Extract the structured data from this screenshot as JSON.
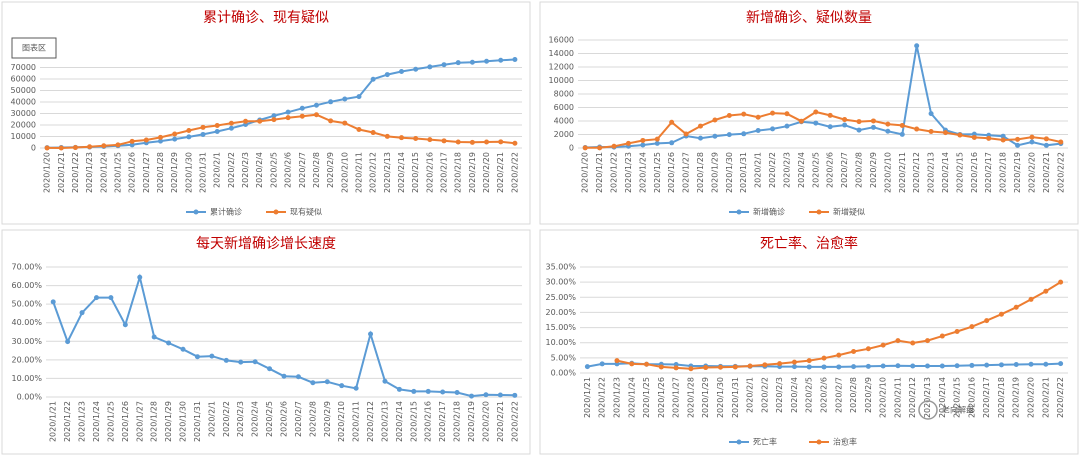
{
  "chart_data": [
    {
      "type": "line",
      "title": "累计确诊、现有疑似",
      "tooltip": "图表区",
      "categories": [
        "2020/1/20",
        "2020/1/21",
        "2020/1/22",
        "2020/1/23",
        "2020/1/24",
        "2020/1/25",
        "2020/1/26",
        "2020/1/27",
        "2020/1/28",
        "2020/1/29",
        "2020/1/30",
        "2020/1/31",
        "2020/2/1",
        "2020/2/2",
        "2020/2/3",
        "2020/2/4",
        "2020/2/5",
        "2020/2/6",
        "2020/2/7",
        "2020/2/8",
        "2020/2/9",
        "2020/2/10",
        "2020/2/11",
        "2020/2/12",
        "2020/2/13",
        "2020/2/14",
        "2020/2/15",
        "2020/2/16",
        "2020/2/17",
        "2020/2/18",
        "2020/2/19",
        "2020/2/20",
        "2020/2/21",
        "2020/2/22"
      ],
      "series": [
        {
          "name": "累计确诊",
          "color": "#5b9bd5",
          "values": [
            291,
            440,
            571,
            830,
            1287,
            1975,
            2744,
            4515,
            5974,
            7711,
            9692,
            11791,
            14380,
            17205,
            20438,
            24324,
            28018,
            31161,
            34546,
            37198,
            40171,
            42638,
            44653,
            59804,
            63851,
            66492,
            68500,
            70548,
            72436,
            74185,
            74576,
            75465,
            76288,
            76936
          ]
        },
        {
          "name": "现有疑似",
          "color": "#ed7d31",
          "values": [
            54,
            37,
            393,
            1072,
            1965,
            2684,
            5794,
            6973,
            9239,
            12167,
            15238,
            17988,
            19544,
            21558,
            23214,
            23260,
            24702,
            26359,
            27657,
            28942,
            23589,
            21675,
            16067,
            13435,
            10109,
            8969,
            8228,
            7264,
            6242,
            5248,
            4922,
            5206,
            5365,
            4148
          ]
        }
      ],
      "ylim": [
        0,
        80000
      ],
      "yticks": [
        0,
        10000,
        20000,
        30000,
        40000,
        50000,
        60000,
        70000
      ],
      "grid": true,
      "legend": "bottom"
    },
    {
      "type": "line",
      "title": "新增确诊、疑似数量",
      "categories": [
        "2020/1/20",
        "2020/1/21",
        "2020/1/22",
        "2020/1/23",
        "2020/1/24",
        "2020/1/25",
        "2020/1/26",
        "2020/1/27",
        "2020/1/28",
        "2020/1/29",
        "2020/1/30",
        "2020/1/31",
        "2020/2/1",
        "2020/2/2",
        "2020/2/3",
        "2020/2/4",
        "2020/2/5",
        "2020/2/6",
        "2020/2/7",
        "2020/2/8",
        "2020/2/9",
        "2020/2/10",
        "2020/2/11",
        "2020/2/12",
        "2020/2/13",
        "2020/2/14",
        "2020/2/15",
        "2020/2/16",
        "2020/2/17",
        "2020/2/18",
        "2020/2/19",
        "2020/2/20",
        "2020/2/21",
        "2020/2/22"
      ],
      "series": [
        {
          "name": "新增确诊",
          "color": "#5b9bd5",
          "values": [
            77,
            149,
            131,
            259,
            444,
            688,
            769,
            1771,
            1459,
            1737,
            1982,
            2102,
            2590,
            2829,
            3235,
            3887,
            3694,
            3143,
            3399,
            2656,
            3062,
            2478,
            2015,
            15152,
            5090,
            2641,
            2009,
            2048,
            1886,
            1749,
            394,
            889,
            397,
            648
          ]
        },
        {
          "name": "新增疑似",
          "color": "#ed7d31",
          "values": [
            27,
            26,
            257,
            680,
            1118,
            1309,
            3806,
            2077,
            3248,
            4148,
            4812,
            5019,
            4562,
            5173,
            5072,
            3971,
            5328,
            4833,
            4214,
            3916,
            4008,
            3536,
            3342,
            2807,
            2450,
            2277,
            1918,
            1563,
            1432,
            1185,
            1277,
            1614,
            1361,
            882
          ]
        }
      ],
      "ylim": [
        0,
        16000
      ],
      "yticks": [
        0,
        2000,
        4000,
        6000,
        8000,
        10000,
        12000,
        14000,
        16000
      ],
      "grid": true,
      "legend": "bottom"
    },
    {
      "type": "line",
      "title": "每天新增确诊增长速度",
      "categories": [
        "2020/1/21",
        "2020/1/22",
        "2020/1/23",
        "2020/1/24",
        "2020/1/25",
        "2020/1/26",
        "2020/1/27",
        "2020/1/28",
        "2020/1/29",
        "2020/1/30",
        "2020/1/31",
        "2020/2/1",
        "2020/2/2",
        "2020/2/3",
        "2020/2/4",
        "2020/2/5",
        "2020/2/6",
        "2020/2/7",
        "2020/2/8",
        "2020/2/9",
        "2020/2/10",
        "2020/2/11",
        "2020/2/12",
        "2020/2/13",
        "2020/2/14",
        "2020/2/15",
        "2020/2/16",
        "2020/2/17",
        "2020/2/18",
        "2020/2/19",
        "2020/2/20",
        "2020/2/21",
        "2020/2/22"
      ],
      "series": [
        {
          "color": "#5b9bd5",
          "values": [
            51.2,
            29.8,
            45.4,
            53.5,
            53.5,
            38.9,
            64.5,
            32.3,
            29.1,
            25.7,
            21.7,
            22.0,
            19.7,
            18.8,
            19.0,
            15.2,
            11.2,
            10.9,
            7.7,
            8.2,
            6.1,
            4.7,
            33.9,
            8.5,
            4.1,
            3.0,
            3.0,
            2.7,
            2.4,
            0.5,
            1.2,
            1.1,
            0.9
          ]
        }
      ],
      "ylim": [
        0,
        70
      ],
      "yticks": [
        {
          "value": 0,
          "label": "0.00%"
        },
        {
          "value": 10,
          "label": "10.00%"
        },
        {
          "value": 20,
          "label": "20.00%"
        },
        {
          "value": 30,
          "label": "30.00%"
        },
        {
          "value": 40,
          "label": "40.00%"
        },
        {
          "value": 50,
          "label": "50.00%"
        },
        {
          "value": 60,
          "label": "60.00%"
        },
        {
          "value": 70,
          "label": "70.00%"
        }
      ],
      "grid": true
    },
    {
      "type": "line",
      "title": "死亡率、治愈率",
      "watermark": "老向解盘",
      "categories": [
        "2020/1/21",
        "2020/1/22",
        "2020/1/23",
        "2020/1/24",
        "2020/1/25",
        "2020/1/26",
        "2020/1/27",
        "2020/1/28",
        "2020/1/29",
        "2020/1/30",
        "2020/1/31",
        "2020/2/1",
        "2020/2/2",
        "2020/2/3",
        "2020/2/4",
        "2020/2/5",
        "2020/2/6",
        "2020/2/7",
        "2020/2/8",
        "2020/2/9",
        "2020/2/10",
        "2020/2/11",
        "2020/2/12",
        "2020/2/13",
        "2020/2/14",
        "2020/2/15",
        "2020/2/16",
        "2020/2/17",
        "2020/2/18",
        "2020/2/19",
        "2020/2/20",
        "2020/2/21",
        "2020/2/22"
      ],
      "series": [
        {
          "name": "死亡率",
          "color": "#5b9bd5",
          "values": [
            2.1,
            3.0,
            3.0,
            3.2,
            2.9,
            2.9,
            2.8,
            2.3,
            2.3,
            2.2,
            2.2,
            2.2,
            2.2,
            2.1,
            2.1,
            2.0,
            2.0,
            2.0,
            2.1,
            2.2,
            2.3,
            2.4,
            2.3,
            2.3,
            2.3,
            2.4,
            2.5,
            2.6,
            2.7,
            2.8,
            2.9,
            2.9,
            3.1
          ]
        },
        {
          "name": "治愈率",
          "color": "#ed7d31",
          "values": [
            null,
            null,
            4.1,
            3.0,
            2.9,
            2.0,
            1.7,
            1.4,
            1.8,
            1.9,
            2.0,
            2.3,
            2.7,
            3.1,
            3.6,
            4.1,
            4.9,
            5.9,
            7.1,
            8.0,
            9.2,
            10.7,
            9.9,
            10.7,
            12.2,
            13.7,
            15.3,
            17.3,
            19.4,
            21.7,
            24.3,
            27.0,
            30.0
          ]
        }
      ],
      "ylim": [
        0,
        35
      ],
      "yticks": [
        {
          "value": 0,
          "label": "0.00%"
        },
        {
          "value": 5,
          "label": "5.00%"
        },
        {
          "value": 10,
          "label": "10.00%"
        },
        {
          "value": 15,
          "label": "15.00%"
        },
        {
          "value": 20,
          "label": "20.00%"
        },
        {
          "value": 25,
          "label": "25.00%"
        },
        {
          "value": 30,
          "label": "30.00%"
        },
        {
          "value": 35,
          "label": "35.00%"
        }
      ],
      "grid": true,
      "legend": "bottom"
    }
  ]
}
